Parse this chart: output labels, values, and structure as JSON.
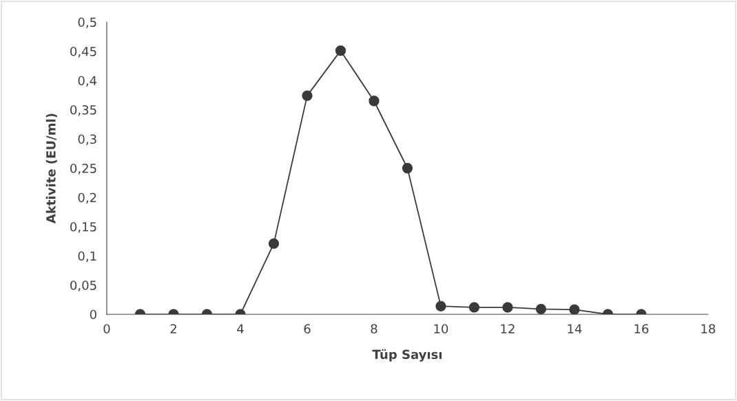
{
  "chart_data": {
    "type": "line",
    "xlabel": "Tüp Sayısı",
    "ylabel": "Aktivite (EU/ml)",
    "x": [
      1,
      2,
      3,
      4,
      5,
      6,
      7,
      8,
      9,
      10,
      11,
      12,
      13,
      14,
      15,
      16
    ],
    "series": [
      {
        "color": "#3a3a3a",
        "values": [
          0,
          0,
          0,
          0,
          0.121,
          0.374,
          0.451,
          0.365,
          0.25,
          0.014,
          0.012,
          0.012,
          0.009,
          0.008,
          0,
          0
        ]
      }
    ],
    "marker": "circle",
    "line_style": "solid",
    "xlim": [
      0,
      18
    ],
    "xticks": [
      0,
      2,
      4,
      6,
      8,
      10,
      12,
      14,
      16,
      18
    ],
    "ylim": [
      0,
      0.5
    ],
    "yticks": [
      0,
      {
        "value": 0.05,
        "label": "0,05"
      },
      {
        "value": 0.1,
        "label": "0,1"
      },
      {
        "value": 0.15,
        "label": "0,15"
      },
      {
        "value": 0.2,
        "label": "0,2"
      },
      {
        "value": 0.25,
        "label": "0,25"
      },
      {
        "value": 0.3,
        "label": "0,3"
      },
      {
        "value": 0.35,
        "label": "0,35"
      },
      {
        "value": 0.4,
        "label": "0,4"
      },
      {
        "value": 0.45,
        "label": "0,45"
      },
      {
        "value": 0.5,
        "label": "0,5"
      }
    ],
    "grid": false,
    "legend": false
  }
}
